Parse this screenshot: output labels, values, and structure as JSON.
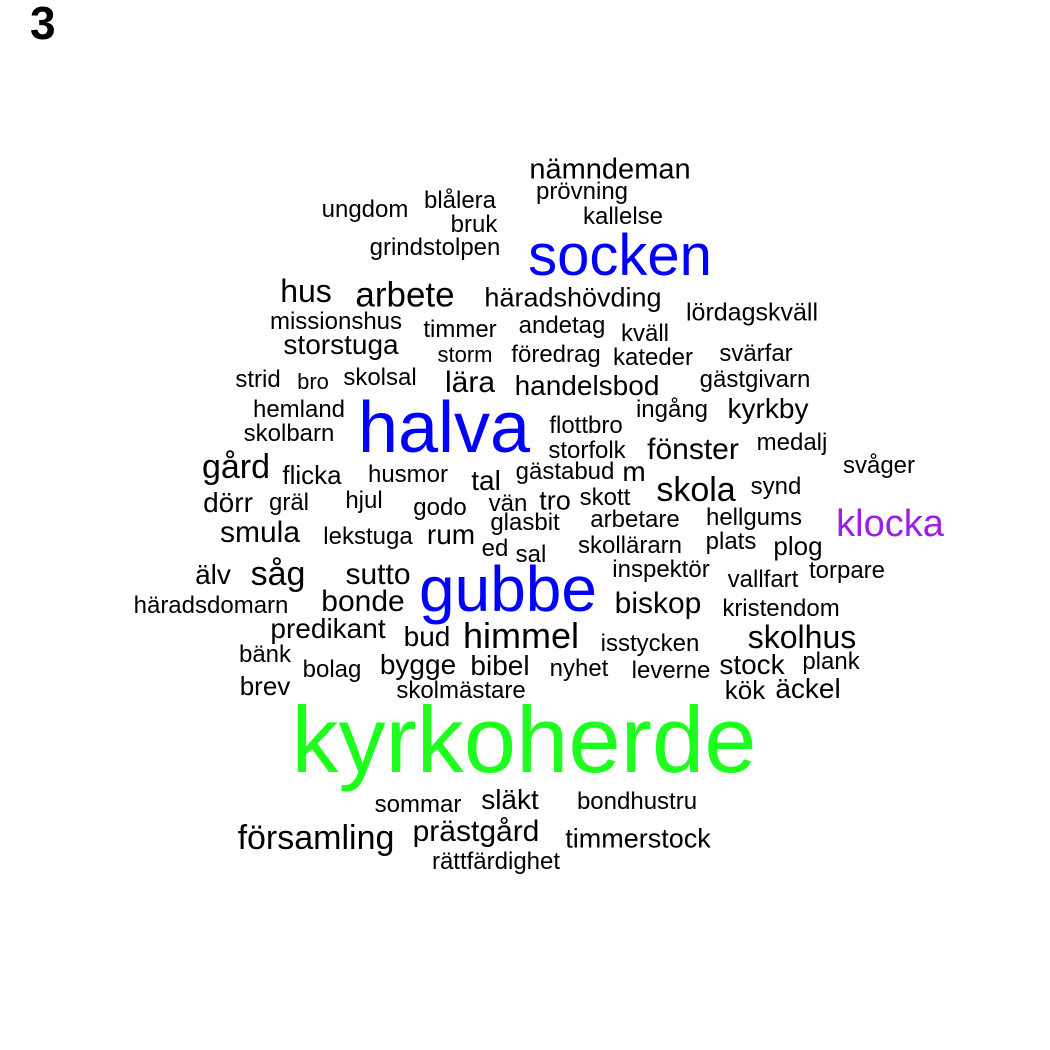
{
  "panel_label": "3",
  "colors": {
    "default": "#000000",
    "blue": "#0000ff",
    "purple": "#9b1fe8",
    "green": "#1fff1f"
  },
  "words": [
    {
      "text": "kyrkoherde",
      "color": "green"
    },
    {
      "text": "halva",
      "color": "blue"
    },
    {
      "text": "gubbe",
      "color": "blue"
    },
    {
      "text": "socken",
      "color": "blue"
    },
    {
      "text": "klocka",
      "color": "purple"
    },
    {
      "text": "nämndeman"
    },
    {
      "text": "prövning"
    },
    {
      "text": "ungdom"
    },
    {
      "text": "blålera"
    },
    {
      "text": "kallelse"
    },
    {
      "text": "bruk"
    },
    {
      "text": "grindstolpen"
    },
    {
      "text": "hus"
    },
    {
      "text": "arbete"
    },
    {
      "text": "häradshövding"
    },
    {
      "text": "lördagskväll"
    },
    {
      "text": "missionshus"
    },
    {
      "text": "timmer"
    },
    {
      "text": "andetag"
    },
    {
      "text": "kväll"
    },
    {
      "text": "storstuga"
    },
    {
      "text": "storm"
    },
    {
      "text": "föredrag"
    },
    {
      "text": "kateder"
    },
    {
      "text": "svärfar"
    },
    {
      "text": "strid"
    },
    {
      "text": "bro"
    },
    {
      "text": "skolsal"
    },
    {
      "text": "lära"
    },
    {
      "text": "handelsbod"
    },
    {
      "text": "gästgivarn"
    },
    {
      "text": "hemland"
    },
    {
      "text": "ingång"
    },
    {
      "text": "kyrkby"
    },
    {
      "text": "skolbarn"
    },
    {
      "text": "flottbro"
    },
    {
      "text": "storfolk"
    },
    {
      "text": "fönster"
    },
    {
      "text": "medalj"
    },
    {
      "text": "gård"
    },
    {
      "text": "flicka"
    },
    {
      "text": "husmor"
    },
    {
      "text": "tal"
    },
    {
      "text": "gästabud"
    },
    {
      "text": "m"
    },
    {
      "text": "svåger"
    },
    {
      "text": "skola"
    },
    {
      "text": "synd"
    },
    {
      "text": "dörr"
    },
    {
      "text": "gräl"
    },
    {
      "text": "hjul"
    },
    {
      "text": "godo"
    },
    {
      "text": "vän"
    },
    {
      "text": "tro"
    },
    {
      "text": "skott"
    },
    {
      "text": "hellgums"
    },
    {
      "text": "smula"
    },
    {
      "text": "lekstuga"
    },
    {
      "text": "rum"
    },
    {
      "text": "glasbit"
    },
    {
      "text": "arbetare"
    },
    {
      "text": "plats"
    },
    {
      "text": "ed"
    },
    {
      "text": "sal"
    },
    {
      "text": "skollärarn"
    },
    {
      "text": "plog"
    },
    {
      "text": "älv"
    },
    {
      "text": "såg"
    },
    {
      "text": "sutto"
    },
    {
      "text": "inspektör"
    },
    {
      "text": "vallfart"
    },
    {
      "text": "torpare"
    },
    {
      "text": "häradsdomarn"
    },
    {
      "text": "bonde"
    },
    {
      "text": "biskop"
    },
    {
      "text": "kristendom"
    },
    {
      "text": "predikant"
    },
    {
      "text": "bud"
    },
    {
      "text": "himmel"
    },
    {
      "text": "isstycken"
    },
    {
      "text": "skolhus"
    },
    {
      "text": "bänk"
    },
    {
      "text": "bolag"
    },
    {
      "text": "bygge"
    },
    {
      "text": "bibel"
    },
    {
      "text": "nyhet"
    },
    {
      "text": "leverne"
    },
    {
      "text": "stock"
    },
    {
      "text": "plank"
    },
    {
      "text": "brev"
    },
    {
      "text": "skolmästare"
    },
    {
      "text": "kök"
    },
    {
      "text": "äckel"
    },
    {
      "text": "sommar"
    },
    {
      "text": "släkt"
    },
    {
      "text": "bondhustru"
    },
    {
      "text": "församling"
    },
    {
      "text": "prästgård"
    },
    {
      "text": "timmerstock"
    },
    {
      "text": "rättfärdighet"
    }
  ]
}
